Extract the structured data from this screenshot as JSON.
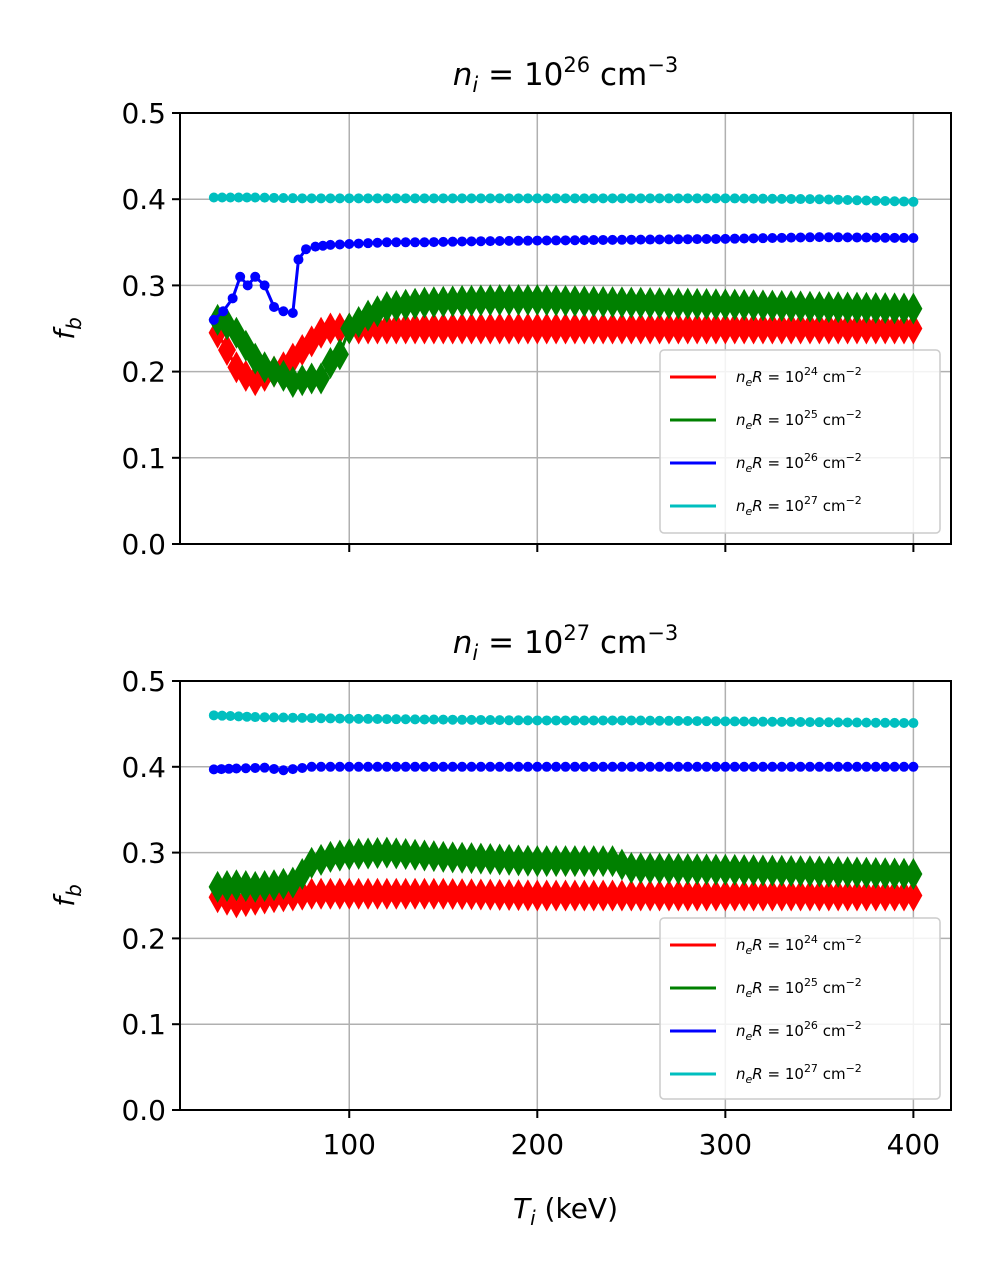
{
  "chart_data": [
    {
      "type": "line",
      "title": "n_i = 10^26 cm^-3",
      "title_parts": {
        "var": "n",
        "sub": "i",
        "eq": " = 10",
        "exp": "26",
        "unit": " cm",
        "unit_exp": "−3"
      },
      "ylabel": "f_b",
      "ylabel_parts": {
        "var": "f",
        "sub": "b"
      },
      "xlabel": "",
      "xlim": [
        10,
        420
      ],
      "ylim": [
        0.0,
        0.5
      ],
      "yticks": [
        "0.0",
        "0.1",
        "0.2",
        "0.3",
        "0.4",
        "0.5"
      ],
      "xticks": [
        100,
        200,
        300,
        400
      ],
      "xtick_labels_visible": false,
      "grid": true,
      "legend_position": "lower-right",
      "legend": [
        {
          "name": "n_eR = 10^24 cm^-2",
          "exp": "24",
          "color": "#ff0000"
        },
        {
          "name": "n_eR = 10^25 cm^-2",
          "exp": "25",
          "color": "#008000"
        },
        {
          "name": "n_eR = 10^26 cm^-2",
          "exp": "26",
          "color": "#0000ff"
        },
        {
          "name": "n_eR = 10^27 cm^-2",
          "exp": "27",
          "color": "#00bfbf"
        }
      ],
      "series": [
        {
          "name": "n_eR = 10^24 cm^-2",
          "color": "#ff0000",
          "marker": "diamond",
          "x": [
            30,
            35,
            40,
            45,
            50,
            55,
            60,
            65,
            70,
            75,
            80,
            85,
            90,
            95,
            100,
            110,
            120,
            140,
            160,
            180,
            200,
            250,
            300,
            350,
            400
          ],
          "y": [
            0.245,
            0.225,
            0.205,
            0.195,
            0.19,
            0.195,
            0.2,
            0.205,
            0.215,
            0.225,
            0.235,
            0.245,
            0.25,
            0.25,
            0.25,
            0.25,
            0.25,
            0.25,
            0.25,
            0.25,
            0.25,
            0.25,
            0.25,
            0.25,
            0.25
          ]
        },
        {
          "name": "n_eR = 10^25 cm^-2",
          "color": "#008000",
          "marker": "diamond",
          "x": [
            30,
            35,
            40,
            45,
            50,
            55,
            60,
            65,
            70,
            75,
            80,
            85,
            90,
            95,
            100,
            110,
            120,
            140,
            160,
            180,
            200,
            250,
            300,
            350,
            400
          ],
          "y": [
            0.26,
            0.255,
            0.245,
            0.23,
            0.215,
            0.205,
            0.2,
            0.195,
            0.188,
            0.19,
            0.192,
            0.192,
            0.21,
            0.22,
            0.25,
            0.265,
            0.275,
            0.28,
            0.282,
            0.283,
            0.283,
            0.28,
            0.278,
            0.275,
            0.273
          ]
        },
        {
          "name": "n_eR = 10^26 cm^-2",
          "color": "#0000ff",
          "marker": "circle",
          "x": [
            28,
            33,
            38,
            42,
            46,
            50,
            55,
            60,
            65,
            70,
            73,
            77,
            82,
            90,
            100,
            120,
            140,
            160,
            200,
            250,
            300,
            350,
            400
          ],
          "y": [
            0.26,
            0.27,
            0.285,
            0.31,
            0.3,
            0.31,
            0.3,
            0.275,
            0.27,
            0.268,
            0.33,
            0.342,
            0.345,
            0.347,
            0.348,
            0.35,
            0.35,
            0.351,
            0.352,
            0.353,
            0.354,
            0.356,
            0.355
          ]
        },
        {
          "name": "n_eR = 10^27 cm^-2",
          "color": "#00bfbf",
          "marker": "circle",
          "x": [
            28,
            50,
            75,
            100,
            150,
            200,
            250,
            300,
            350,
            400
          ],
          "y": [
            0.402,
            0.402,
            0.401,
            0.401,
            0.401,
            0.401,
            0.401,
            0.401,
            0.4,
            0.397
          ]
        }
      ]
    },
    {
      "type": "line",
      "title": "n_i = 10^27 cm^-3",
      "title_parts": {
        "var": "n",
        "sub": "i",
        "eq": " = 10",
        "exp": "27",
        "unit": " cm",
        "unit_exp": "−3"
      },
      "ylabel": "f_b",
      "ylabel_parts": {
        "var": "f",
        "sub": "b"
      },
      "xlabel": "T_i (keV)",
      "xlabel_parts": {
        "var": "T",
        "sub": "i",
        "rest": " (keV)"
      },
      "xlim": [
        10,
        420
      ],
      "ylim": [
        0.0,
        0.5
      ],
      "yticks": [
        "0.0",
        "0.1",
        "0.2",
        "0.3",
        "0.4",
        "0.5"
      ],
      "xticks": [
        100,
        200,
        300,
        400
      ],
      "xtick_labels": [
        "100",
        "200",
        "300",
        "400"
      ],
      "xtick_labels_visible": true,
      "grid": true,
      "legend_position": "lower-right",
      "legend": [
        {
          "name": "n_eR = 10^24 cm^-2",
          "exp": "24",
          "color": "#ff0000"
        },
        {
          "name": "n_eR = 10^25 cm^-2",
          "exp": "25",
          "color": "#008000"
        },
        {
          "name": "n_eR = 10^26 cm^-2",
          "exp": "26",
          "color": "#0000ff"
        },
        {
          "name": "n_eR = 10^27 cm^-2",
          "exp": "27",
          "color": "#00bfbf"
        }
      ],
      "series": [
        {
          "name": "n_eR = 10^24 cm^-2",
          "color": "#ff0000",
          "marker": "diamond",
          "x": [
            30,
            40,
            50,
            60,
            70,
            80,
            90,
            100,
            150,
            200,
            250,
            300,
            350,
            400
          ],
          "y": [
            0.248,
            0.242,
            0.245,
            0.248,
            0.25,
            0.252,
            0.252,
            0.252,
            0.252,
            0.25,
            0.25,
            0.25,
            0.25,
            0.25
          ]
        },
        {
          "name": "n_eR = 10^25 cm^-2",
          "color": "#008000",
          "marker": "diamond",
          "x": [
            30,
            40,
            50,
            60,
            70,
            75,
            80,
            90,
            100,
            120,
            150,
            200,
            240,
            250,
            300,
            350,
            400
          ],
          "y": [
            0.26,
            0.262,
            0.26,
            0.262,
            0.265,
            0.275,
            0.288,
            0.295,
            0.298,
            0.3,
            0.295,
            0.29,
            0.29,
            0.282,
            0.28,
            0.278,
            0.275
          ]
        },
        {
          "name": "n_eR = 10^26 cm^-2",
          "color": "#0000ff",
          "marker": "circle",
          "x": [
            28,
            40,
            55,
            65,
            80,
            100,
            150,
            200,
            250,
            300,
            350,
            400
          ],
          "y": [
            0.397,
            0.398,
            0.399,
            0.396,
            0.4,
            0.4,
            0.4,
            0.4,
            0.4,
            0.4,
            0.4,
            0.4
          ]
        },
        {
          "name": "n_eR = 10^27 cm^-2",
          "color": "#00bfbf",
          "marker": "circle",
          "x": [
            28,
            50,
            75,
            100,
            150,
            200,
            250,
            300,
            350,
            400
          ],
          "y": [
            0.46,
            0.458,
            0.457,
            0.456,
            0.455,
            0.454,
            0.454,
            0.453,
            0.452,
            0.451
          ]
        }
      ]
    }
  ]
}
